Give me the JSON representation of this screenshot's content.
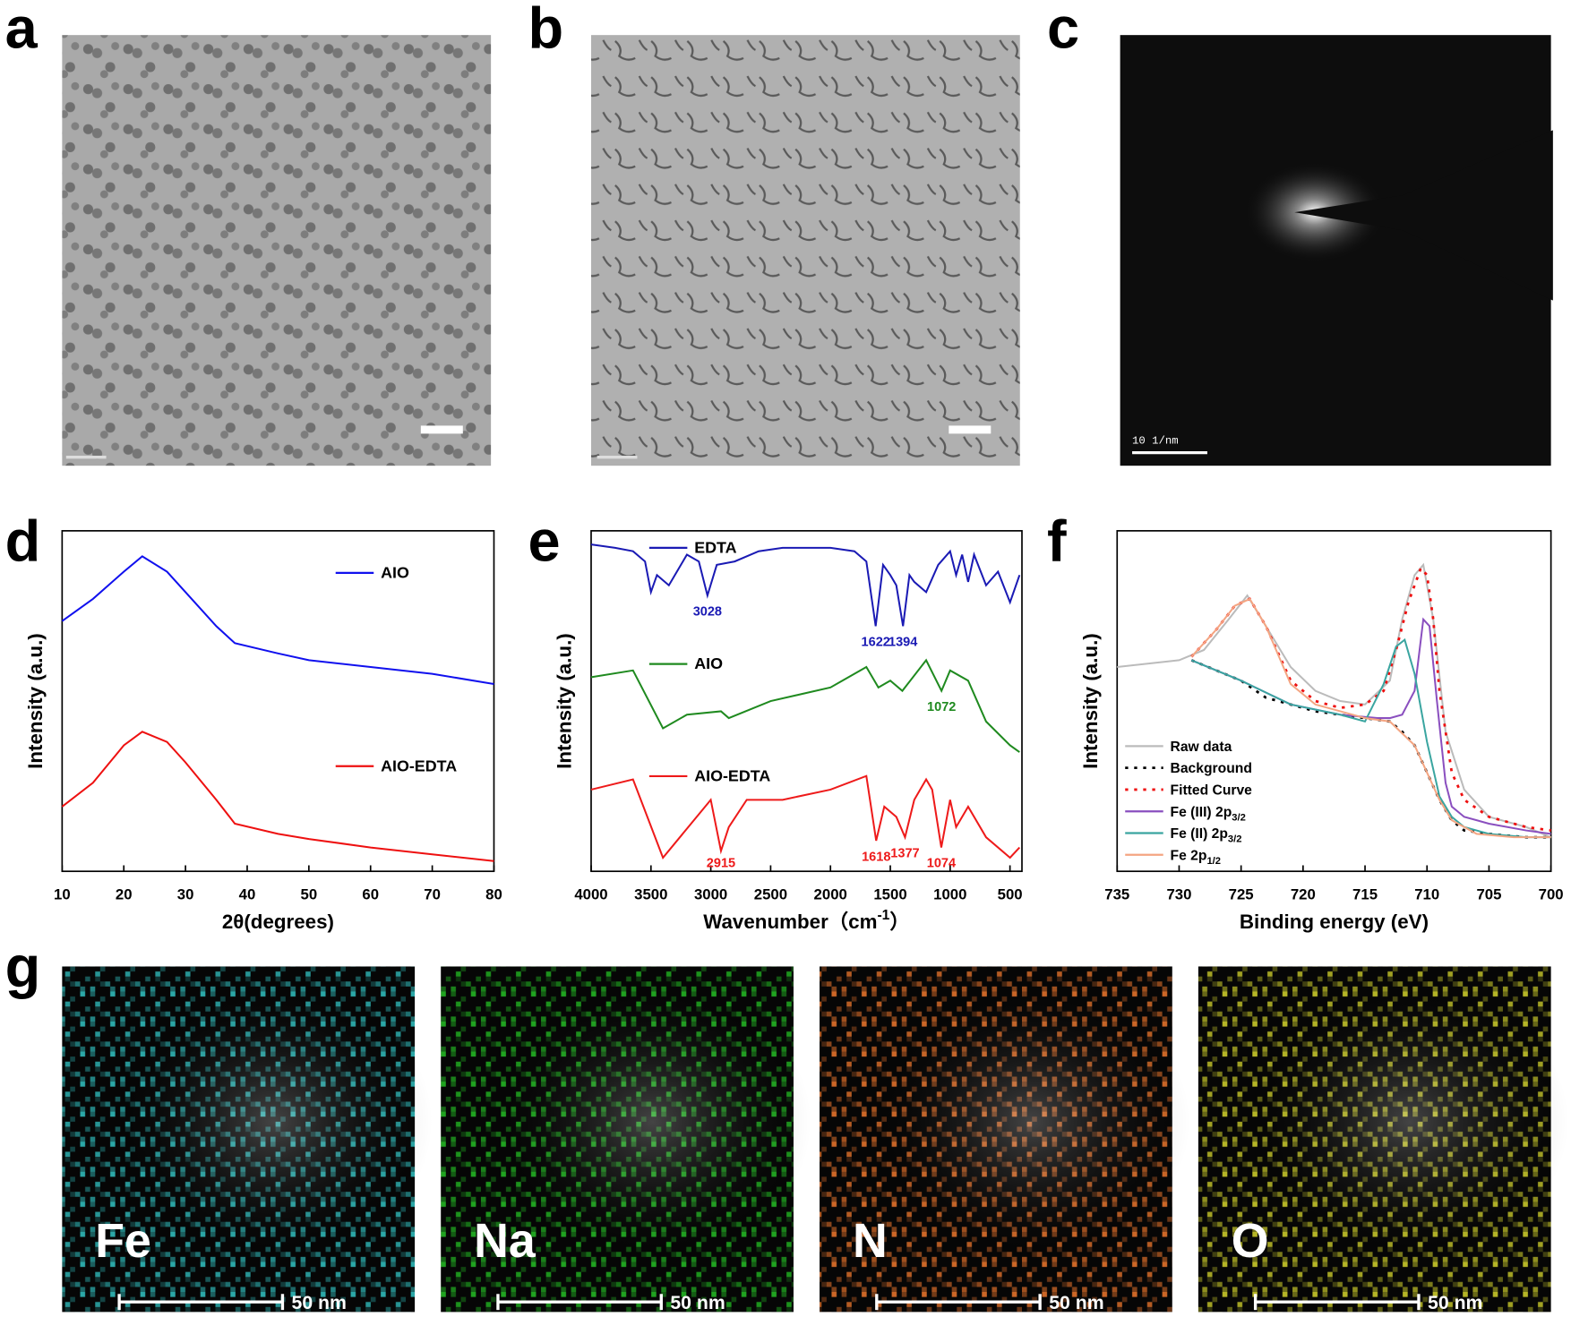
{
  "panel_labels": [
    "a",
    "b",
    "c",
    "d",
    "e",
    "f",
    "g"
  ],
  "micrographs": {
    "c_scale": "10 1/nm"
  },
  "element_maps": [
    {
      "element": "Fe",
      "scale": "50 nm",
      "color": "#2fb8b8"
    },
    {
      "element": "Na",
      "scale": "50 nm",
      "color": "#22b422"
    },
    {
      "element": "N",
      "scale": "50 nm",
      "color": "#e0702a"
    },
    {
      "element": "O",
      "scale": "50 nm",
      "color": "#c8c82a"
    }
  ],
  "chart_data": [
    {
      "type": "line",
      "x_label": "2θ(degrees)",
      "y_label": "Intensity (a.u.)",
      "xlim": [
        10,
        80
      ],
      "xticks": [
        10,
        20,
        30,
        40,
        50,
        60,
        70,
        80
      ],
      "ylim": [
        0,
        100
      ],
      "x": [
        10,
        15,
        20,
        23,
        27,
        30,
        35,
        38,
        45,
        50,
        60,
        70,
        80
      ],
      "series": [
        {
          "name": "AIO",
          "color": "#1010ee",
          "values": [
            73.5,
            80,
            88,
            92.5,
            88,
            82,
            72,
            67,
            64,
            62,
            60,
            58,
            55
          ]
        },
        {
          "name": "AIO-EDTA",
          "color": "#ee1010",
          "values": [
            19,
            26,
            37,
            41,
            38,
            32,
            21,
            14,
            11,
            9.5,
            7,
            5,
            3
          ]
        }
      ]
    },
    {
      "type": "line",
      "x_label": {
        "text": "Wavenumber（cm",
        "sup": "-1",
        "end": "）"
      },
      "y_label": "Intensity (a.u.)",
      "xlim": [
        4000,
        400
      ],
      "xticks": [
        4000,
        3500,
        3000,
        2500,
        2000,
        1500,
        1000,
        500
      ],
      "ylim": [
        0,
        100
      ],
      "series": [
        {
          "name": "EDTA",
          "color": "#1a1ab4",
          "x": [
            4000,
            3800,
            3650,
            3550,
            3500,
            3450,
            3350,
            3200,
            3100,
            3028,
            2950,
            2800,
            2600,
            2400,
            2200,
            2000,
            1800,
            1700,
            1622,
            1560,
            1500,
            1450,
            1394,
            1340,
            1300,
            1200,
            1100,
            1000,
            950,
            900,
            850,
            800,
            700,
            600,
            500,
            420
          ],
          "values": [
            96,
            95,
            94,
            91,
            82,
            87,
            84,
            93,
            91,
            81,
            90,
            91,
            94,
            95,
            95,
            95,
            94,
            91,
            72,
            90,
            87,
            84,
            72,
            87,
            85,
            82,
            90,
            94,
            87,
            93,
            85,
            93,
            84,
            88,
            79,
            87
          ],
          "peaks": [
            3028,
            1622,
            1394
          ]
        },
        {
          "name": "AIO",
          "color": "#1f8a1f",
          "x": [
            4000,
            3650,
            3400,
            3200,
            2915,
            2850,
            2500,
            2000,
            1700,
            1600,
            1500,
            1400,
            1200,
            1072,
            1000,
            850,
            700,
            500,
            420
          ],
          "values": [
            57,
            59,
            42,
            46,
            47,
            45,
            50,
            54,
            60,
            54,
            56,
            53,
            62,
            53,
            59,
            56,
            44,
            37,
            35
          ],
          "peaks": [
            1072
          ]
        },
        {
          "name": "AIO-EDTA",
          "color": "#ee1a1a",
          "x": [
            4000,
            3650,
            3400,
            3000,
            2915,
            2850,
            2700,
            2400,
            2000,
            1700,
            1618,
            1550,
            1450,
            1377,
            1300,
            1200,
            1150,
            1074,
            1000,
            950,
            850,
            700,
            500,
            420
          ],
          "values": [
            24,
            27,
            4,
            21,
            6,
            13,
            21,
            21,
            24,
            28,
            9,
            19,
            16,
            10,
            21,
            27,
            24,
            7,
            21,
            13,
            19,
            10,
            4,
            7
          ],
          "peaks": [
            2915,
            1618,
            1377,
            1074
          ]
        }
      ]
    },
    {
      "type": "line",
      "x_label": "Binding energy (eV)",
      "y_label": "Intensity (a.u.)",
      "xlim": [
        735,
        700
      ],
      "xticks": [
        735,
        730,
        725,
        720,
        715,
        710,
        705,
        700
      ],
      "ylim": [
        0,
        100
      ],
      "legend": "lower-left",
      "series": [
        {
          "name": "Raw data",
          "color": "#bbbbbb",
          "style": "solid",
          "x": [
            735,
            730,
            728,
            726,
            724.5,
            723,
            721,
            719,
            717,
            715,
            713,
            712,
            711,
            710.3,
            709.5,
            708.5,
            707,
            705,
            702,
            700
          ],
          "values": [
            60,
            62,
            65,
            74,
            81,
            72,
            60,
            53,
            50,
            49,
            56,
            74,
            87,
            90,
            74,
            41,
            24,
            16,
            13,
            10
          ]
        },
        {
          "name": "Background",
          "color": "#000000",
          "style": "dotted",
          "x": [
            729,
            727,
            725,
            723,
            721,
            719,
            717,
            715,
            713,
            712,
            711,
            710,
            709,
            708,
            707,
            705,
            702,
            700
          ],
          "values": [
            62,
            59,
            56,
            51,
            49,
            47,
            46,
            45,
            44,
            41,
            37,
            29,
            21,
            15,
            12,
            11,
            10,
            10
          ]
        },
        {
          "name": "Fitted Curve",
          "color": "#ee1010",
          "style": "dotted",
          "x": [
            729,
            727,
            725.5,
            724.3,
            723,
            721,
            719,
            717,
            715,
            713.5,
            712.5,
            711.5,
            710.5,
            710,
            709.5,
            709,
            708,
            707,
            705,
            702,
            700
          ],
          "values": [
            63,
            71,
            78,
            80,
            72,
            56,
            50,
            48,
            49,
            53,
            65,
            79,
            89,
            87,
            74,
            53,
            29,
            21,
            16,
            13,
            12
          ]
        },
        {
          "name": "Fe (III) 2p",
          "sub": "3/2",
          "color": "#8a4fbf",
          "style": "solid",
          "x": [
            729,
            725,
            721,
            717,
            714,
            713,
            712,
            711,
            710.3,
            709.8,
            709.2,
            708.5,
            708,
            707,
            705,
            702,
            700
          ],
          "values": [
            62,
            56,
            49,
            46,
            45,
            45,
            46,
            53,
            74,
            72,
            50,
            26,
            19,
            16,
            14,
            12,
            11
          ]
        },
        {
          "name": "Fe (II) 2p",
          "sub": "3/2",
          "color": "#3aa5a0",
          "style": "solid",
          "x": [
            729,
            725,
            721,
            717,
            715,
            713.5,
            712.5,
            711.8,
            711,
            710,
            709,
            708,
            707,
            705,
            702,
            700
          ],
          "values": [
            62,
            56,
            49,
            46,
            44,
            55,
            66,
            68,
            58,
            38,
            22,
            16,
            13,
            11,
            10,
            10
          ]
        },
        {
          "name": "Fe 2p",
          "sub": "1/2",
          "color": "#f4a582",
          "style": "solid",
          "x": [
            729,
            727,
            725.5,
            724.3,
            723,
            721,
            719,
            717,
            715,
            713,
            711,
            710,
            709,
            708,
            706,
            703,
            700
          ],
          "values": [
            63,
            71,
            78,
            80,
            72,
            55,
            49,
            47,
            45,
            44,
            37,
            29,
            21,
            15,
            11,
            10,
            10
          ]
        }
      ]
    }
  ]
}
